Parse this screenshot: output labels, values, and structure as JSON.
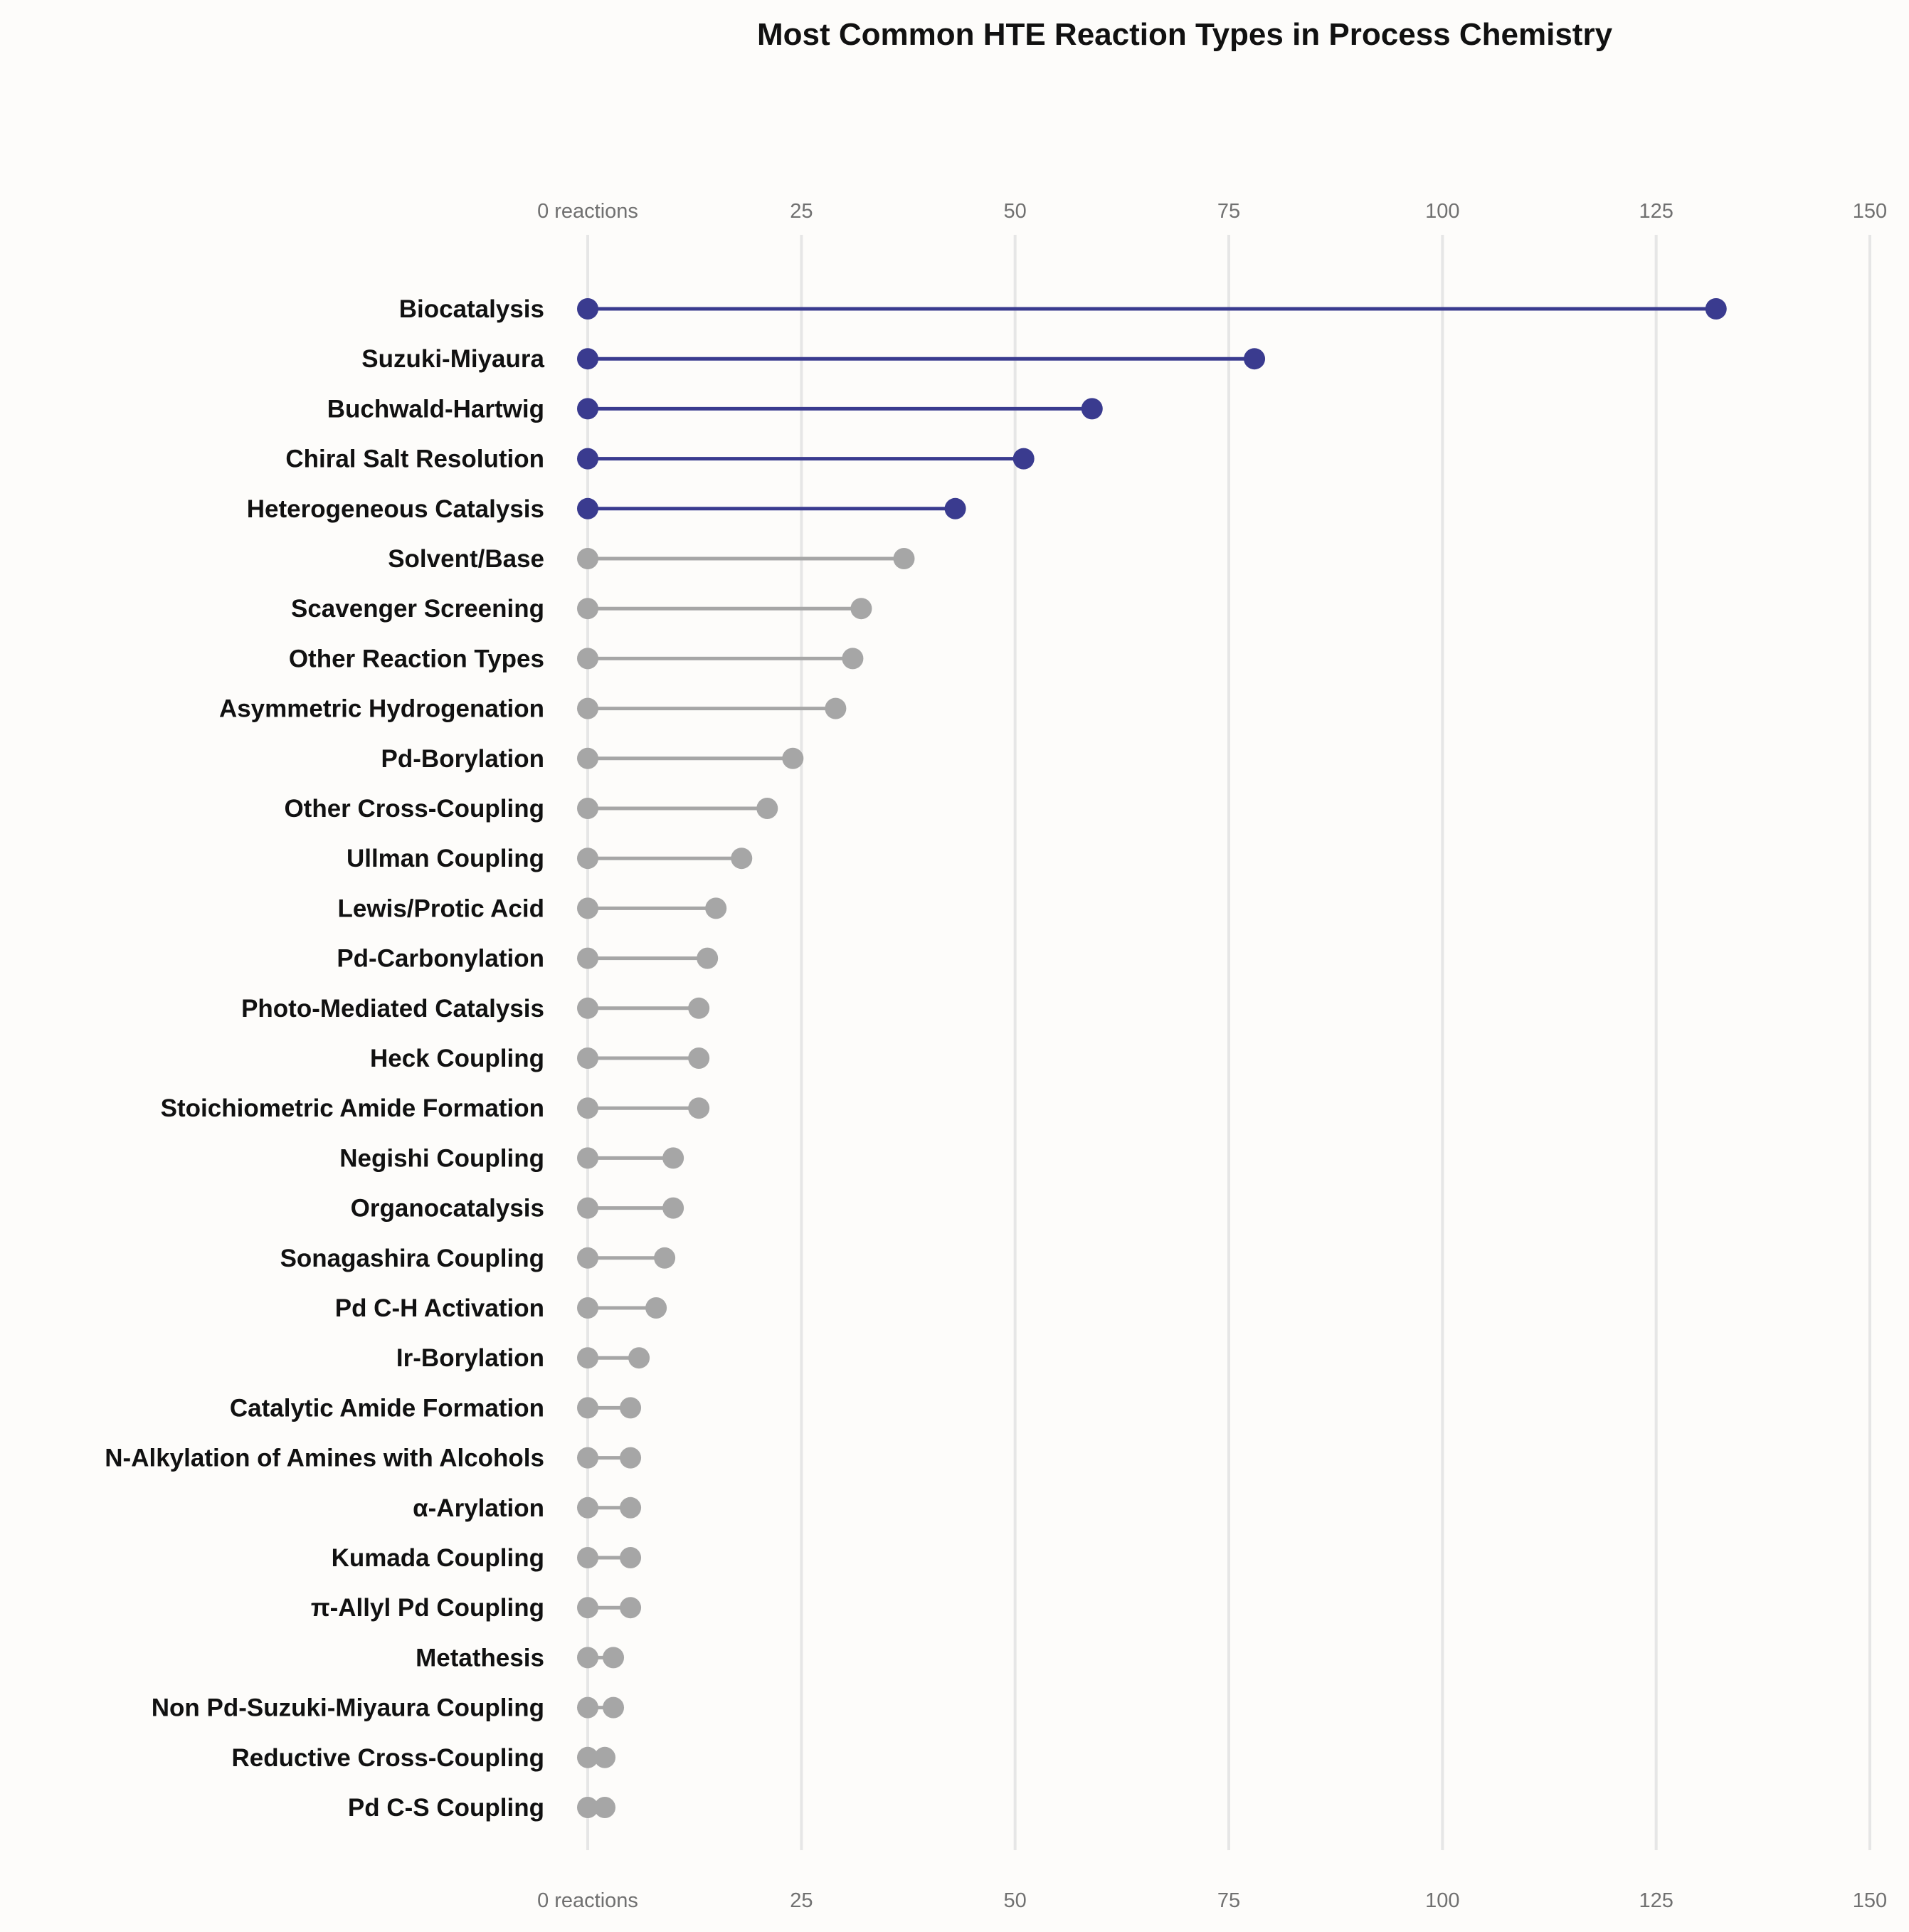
{
  "chart_data": {
    "type": "lollipop",
    "title": "Most Common HTE Reaction Types in Process Chemistry",
    "xlabel": "",
    "ylabel": "",
    "xlim": [
      0,
      150
    ],
    "x_ticks": [
      0,
      25,
      50,
      75,
      100,
      125,
      150
    ],
    "x_tick_labels": [
      "0 reactions",
      "25",
      "50",
      "75",
      "100",
      "125",
      "150"
    ],
    "x_axis_position": "top and bottom",
    "grid": "vertical major gridlines",
    "legend": "none",
    "highlight_count": 5,
    "colors": {
      "highlight": "#3a3b8f",
      "default": "#a6a6a6",
      "grid": "#e6e6e6",
      "background": "#fdfcfa"
    },
    "categories": [
      "Biocatalysis",
      "Suzuki-Miyaura",
      "Buchwald-Hartwig",
      "Chiral Salt Resolution",
      "Heterogeneous Catalysis",
      "Solvent/Base",
      "Scavenger Screening",
      "Other Reaction Types",
      "Asymmetric Hydrogenation",
      "Pd-Borylation",
      "Other Cross-Coupling",
      "Ullman Coupling",
      "Lewis/Protic Acid",
      "Pd-Carbonylation",
      "Photo-Mediated Catalysis",
      "Heck Coupling",
      "Stoichiometric Amide Formation",
      "Negishi Coupling",
      "Organocatalysis",
      "Sonagashira Coupling",
      "Pd C-H Activation",
      "Ir-Borylation",
      "Catalytic Amide Formation",
      "N-Alkylation of Amines with Alcohols",
      "α-Arylation",
      "Kumada Coupling",
      "π-Allyl Pd Coupling",
      "Metathesis",
      "Non Pd-Suzuki-Miyaura Coupling",
      "Reductive Cross-Coupling",
      "Pd C-S Coupling"
    ],
    "values": [
      132,
      78,
      59,
      51,
      43,
      37,
      32,
      31,
      29,
      24,
      21,
      18,
      15,
      14,
      13,
      13,
      13,
      10,
      10,
      9,
      8,
      6,
      5,
      5,
      5,
      5,
      5,
      3,
      3,
      2,
      2
    ]
  }
}
